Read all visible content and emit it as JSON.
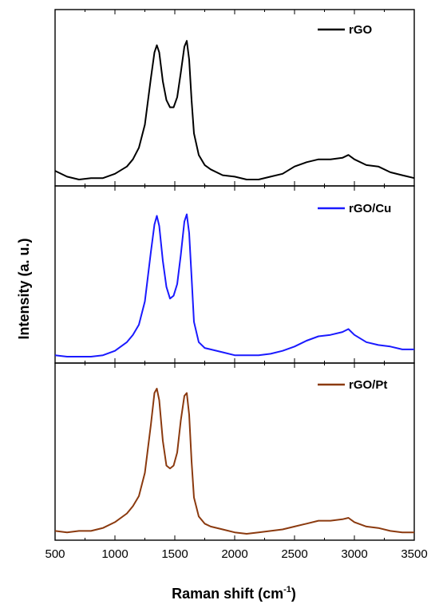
{
  "chart_data": {
    "type": "line",
    "xlabel_main": "Raman shift (cm",
    "xlabel_sup": "-1",
    "xlabel_end": ")",
    "ylabel": "Intensity (a. u.)",
    "xlim": [
      500,
      3500
    ],
    "x_ticks": [
      500,
      1000,
      1500,
      2000,
      2500,
      3000,
      3500
    ],
    "x_tick_labels": [
      "500",
      "1000",
      "1500",
      "2000",
      "2500",
      "3000",
      "3500"
    ],
    "y_scale": "relative, no numeric ticks",
    "layout": "three stacked panels sharing the x axis",
    "series": [
      {
        "name": "rGO",
        "color": "#000000",
        "points": [
          [
            500,
            0.06
          ],
          [
            600,
            0.02
          ],
          [
            700,
            0.0
          ],
          [
            800,
            0.01
          ],
          [
            900,
            0.01
          ],
          [
            1000,
            0.04
          ],
          [
            1100,
            0.09
          ],
          [
            1150,
            0.14
          ],
          [
            1200,
            0.22
          ],
          [
            1250,
            0.38
          ],
          [
            1300,
            0.7
          ],
          [
            1330,
            0.88
          ],
          [
            1350,
            0.93
          ],
          [
            1370,
            0.88
          ],
          [
            1400,
            0.68
          ],
          [
            1430,
            0.55
          ],
          [
            1460,
            0.5
          ],
          [
            1490,
            0.5
          ],
          [
            1520,
            0.57
          ],
          [
            1550,
            0.74
          ],
          [
            1580,
            0.92
          ],
          [
            1600,
            0.96
          ],
          [
            1620,
            0.83
          ],
          [
            1640,
            0.55
          ],
          [
            1660,
            0.32
          ],
          [
            1700,
            0.17
          ],
          [
            1750,
            0.1
          ],
          [
            1800,
            0.07
          ],
          [
            1900,
            0.03
          ],
          [
            2000,
            0.02
          ],
          [
            2100,
            0.0
          ],
          [
            2200,
            0.0
          ],
          [
            2300,
            0.02
          ],
          [
            2400,
            0.04
          ],
          [
            2500,
            0.09
          ],
          [
            2600,
            0.12
          ],
          [
            2700,
            0.14
          ],
          [
            2800,
            0.14
          ],
          [
            2900,
            0.15
          ],
          [
            2950,
            0.17
          ],
          [
            3000,
            0.14
          ],
          [
            3100,
            0.1
          ],
          [
            3200,
            0.09
          ],
          [
            3300,
            0.05
          ],
          [
            3400,
            0.03
          ],
          [
            3500,
            0.01
          ]
        ]
      },
      {
        "name": "rGO/Cu",
        "color": "#1a1aff",
        "points": [
          [
            500,
            0.01
          ],
          [
            600,
            0.0
          ],
          [
            700,
            0.0
          ],
          [
            800,
            0.0
          ],
          [
            900,
            0.01
          ],
          [
            1000,
            0.04
          ],
          [
            1100,
            0.1
          ],
          [
            1150,
            0.15
          ],
          [
            1200,
            0.22
          ],
          [
            1250,
            0.38
          ],
          [
            1300,
            0.72
          ],
          [
            1330,
            0.91
          ],
          [
            1350,
            0.97
          ],
          [
            1370,
            0.9
          ],
          [
            1400,
            0.66
          ],
          [
            1430,
            0.48
          ],
          [
            1460,
            0.4
          ],
          [
            1490,
            0.42
          ],
          [
            1520,
            0.5
          ],
          [
            1550,
            0.7
          ],
          [
            1580,
            0.93
          ],
          [
            1600,
            0.98
          ],
          [
            1620,
            0.85
          ],
          [
            1640,
            0.55
          ],
          [
            1660,
            0.24
          ],
          [
            1700,
            0.1
          ],
          [
            1750,
            0.06
          ],
          [
            1800,
            0.05
          ],
          [
            1900,
            0.03
          ],
          [
            2000,
            0.01
          ],
          [
            2100,
            0.01
          ],
          [
            2200,
            0.01
          ],
          [
            2300,
            0.02
          ],
          [
            2400,
            0.04
          ],
          [
            2500,
            0.07
          ],
          [
            2600,
            0.11
          ],
          [
            2700,
            0.14
          ],
          [
            2800,
            0.15
          ],
          [
            2900,
            0.17
          ],
          [
            2950,
            0.19
          ],
          [
            3000,
            0.15
          ],
          [
            3100,
            0.1
          ],
          [
            3200,
            0.08
          ],
          [
            3300,
            0.07
          ],
          [
            3400,
            0.05
          ],
          [
            3500,
            0.05
          ]
        ]
      },
      {
        "name": "rGO/Pt",
        "color": "#8b3a0f",
        "points": [
          [
            500,
            0.02
          ],
          [
            600,
            0.01
          ],
          [
            700,
            0.02
          ],
          [
            800,
            0.02
          ],
          [
            900,
            0.04
          ],
          [
            1000,
            0.08
          ],
          [
            1100,
            0.14
          ],
          [
            1150,
            0.19
          ],
          [
            1200,
            0.26
          ],
          [
            1250,
            0.42
          ],
          [
            1300,
            0.75
          ],
          [
            1330,
            0.97
          ],
          [
            1350,
            1.0
          ],
          [
            1370,
            0.92
          ],
          [
            1400,
            0.64
          ],
          [
            1430,
            0.47
          ],
          [
            1460,
            0.45
          ],
          [
            1490,
            0.47
          ],
          [
            1520,
            0.56
          ],
          [
            1550,
            0.78
          ],
          [
            1580,
            0.95
          ],
          [
            1600,
            0.97
          ],
          [
            1620,
            0.82
          ],
          [
            1640,
            0.5
          ],
          [
            1660,
            0.25
          ],
          [
            1700,
            0.12
          ],
          [
            1750,
            0.07
          ],
          [
            1800,
            0.05
          ],
          [
            1900,
            0.03
          ],
          [
            2000,
            0.01
          ],
          [
            2100,
            0.0
          ],
          [
            2200,
            0.01
          ],
          [
            2300,
            0.02
          ],
          [
            2400,
            0.03
          ],
          [
            2500,
            0.05
          ],
          [
            2600,
            0.07
          ],
          [
            2700,
            0.09
          ],
          [
            2800,
            0.09
          ],
          [
            2900,
            0.1
          ],
          [
            2950,
            0.11
          ],
          [
            3000,
            0.08
          ],
          [
            3100,
            0.05
          ],
          [
            3200,
            0.04
          ],
          [
            3300,
            0.02
          ],
          [
            3400,
            0.01
          ],
          [
            3500,
            0.01
          ]
        ]
      }
    ]
  }
}
